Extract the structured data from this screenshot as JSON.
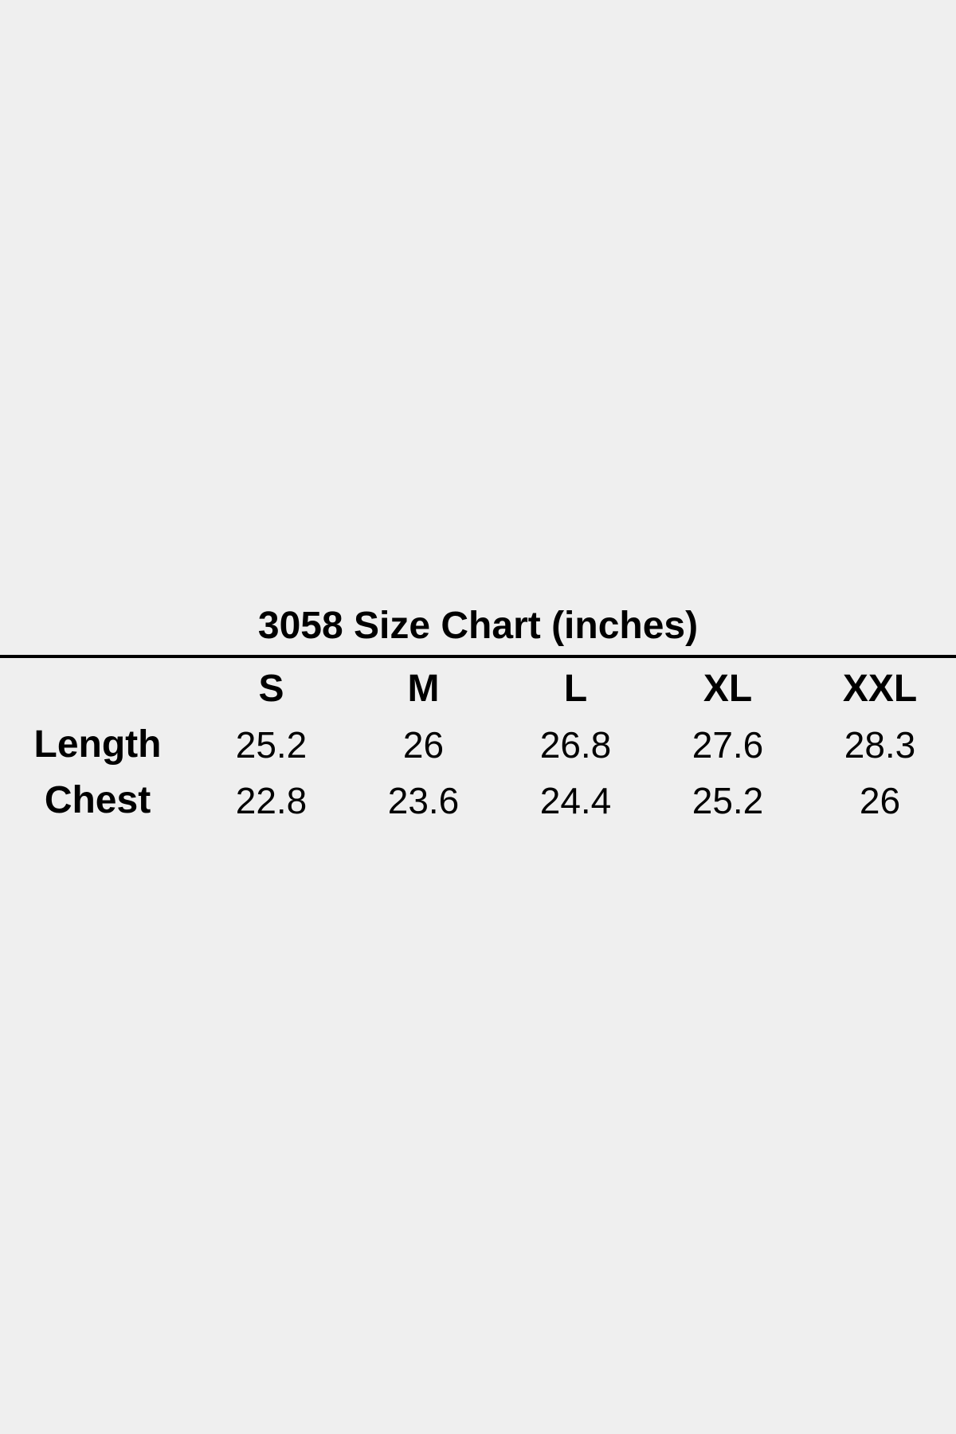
{
  "page": {
    "background_color": "#efefef",
    "text_color": "#000000",
    "divider_color": "#000000"
  },
  "size_chart": {
    "title": "3058 Size Chart (inches)",
    "columns": [
      "S",
      "M",
      "L",
      "XL",
      "XXL"
    ],
    "rows": [
      {
        "label": "Length",
        "values": [
          "25.2",
          "26",
          "26.8",
          "27.6",
          "28.3"
        ]
      },
      {
        "label": "Chest",
        "values": [
          "22.8",
          "23.6",
          "24.4",
          "25.2",
          "26"
        ]
      }
    ]
  },
  "chart_data": {
    "type": "table",
    "title": "3058 Size Chart (inches)",
    "unit": "inches",
    "columns": [
      "S",
      "M",
      "L",
      "XL",
      "XXL"
    ],
    "rows": [
      {
        "label": "Length",
        "values": [
          25.2,
          26,
          26.8,
          27.6,
          28.3
        ]
      },
      {
        "label": "Chest",
        "values": [
          22.8,
          23.6,
          24.4,
          25.2,
          26
        ]
      }
    ],
    "layout": {
      "title_centered": true,
      "full_width_rule_below_title": true,
      "header_row_bold": true,
      "row_labels_bold": true,
      "values_regular_weight": true,
      "grid_lines": false
    }
  }
}
